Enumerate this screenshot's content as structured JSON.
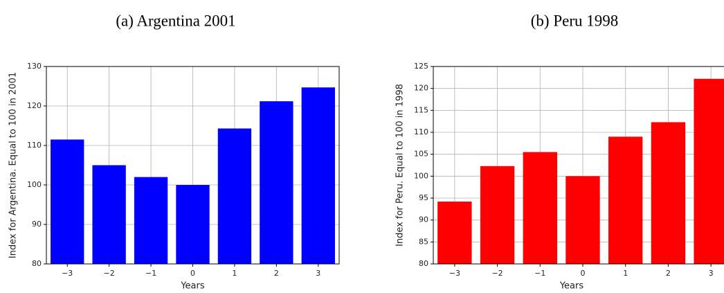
{
  "chart_data": [
    {
      "type": "bar",
      "title": "(a) Argentina 2001",
      "x_label": "Years",
      "y_label": "Index for Argentina. Equal to 100 in 2001",
      "x": [
        -3,
        -2,
        -1,
        0,
        1,
        2,
        3
      ],
      "values": [
        111.5,
        105,
        102,
        100,
        114.3,
        121.2,
        124.7
      ],
      "color": "#0000ff",
      "xlim": [
        -3.5,
        3.5
      ],
      "ylim": [
        80,
        130
      ],
      "xticks": [
        {
          "value": -3,
          "label": "−3"
        },
        {
          "value": -2,
          "label": "−2"
        },
        {
          "value": -1,
          "label": "−1"
        },
        0,
        1,
        2,
        3
      ],
      "yticks": [
        80,
        90,
        100,
        110,
        120,
        130
      ],
      "grid": true
    },
    {
      "type": "bar",
      "title": "(b) Peru 1998",
      "x_label": "Years",
      "y_label": "Index for Peru. Equal to 100 in 1998",
      "x": [
        -3,
        -2,
        -1,
        0,
        1,
        2,
        3
      ],
      "values": [
        94.2,
        102.3,
        105.5,
        100,
        109,
        112.3,
        122.2
      ],
      "color": "#ff0000",
      "xlim": [
        -3.5,
        3.5
      ],
      "ylim": [
        80,
        125
      ],
      "xticks": [
        {
          "value": -3,
          "label": "−3"
        },
        {
          "value": -2,
          "label": "−2"
        },
        {
          "value": -1,
          "label": "−1"
        },
        0,
        1,
        2,
        3
      ],
      "yticks": [
        80,
        85,
        90,
        95,
        100,
        105,
        110,
        115,
        120,
        125
      ],
      "grid": true
    }
  ]
}
